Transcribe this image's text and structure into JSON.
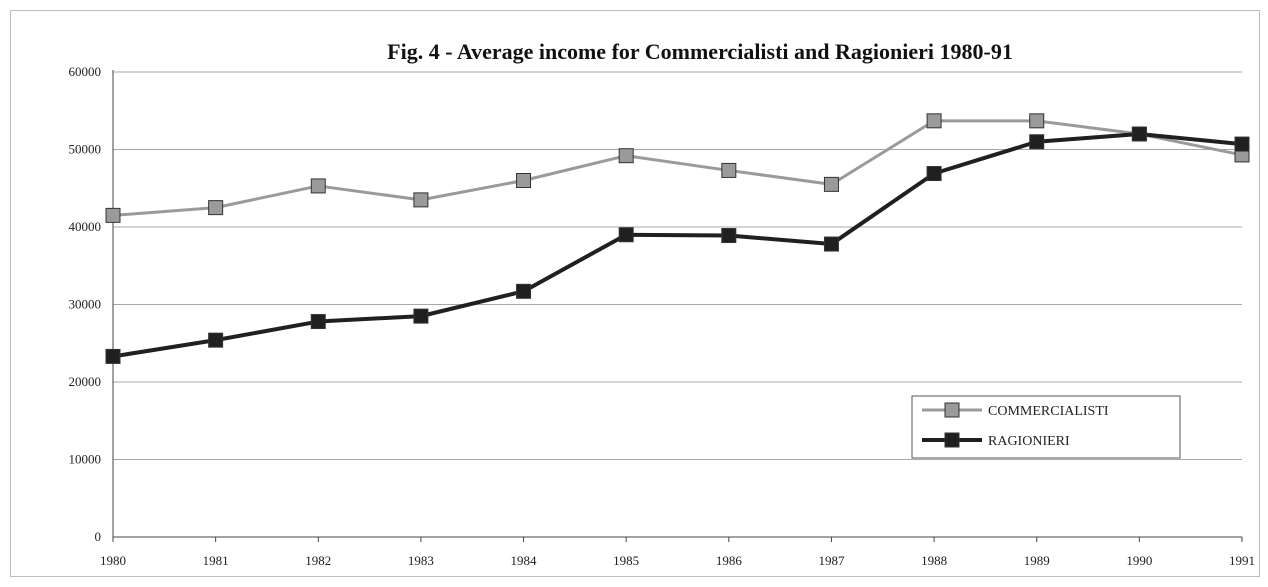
{
  "chart_data": {
    "type": "line",
    "title": "Fig.  4 - Average income for Commercialisti and Ragionieri 1980-91",
    "xlabel": "",
    "ylabel": "",
    "categories": [
      "1980",
      "1981",
      "1982",
      "1983",
      "1984",
      "1985",
      "1986",
      "1987",
      "1988",
      "1989",
      "1990",
      "1991"
    ],
    "ylim": [
      0,
      60000
    ],
    "yticks": [
      "0",
      "10000",
      "20000",
      "30000",
      "40000",
      "50000",
      "60000"
    ],
    "grid": "horizontal",
    "legend_position": "lower-right",
    "series": [
      {
        "name": "COMMERCIALISTI",
        "color": "#9a9a9a",
        "values": [
          41500,
          42500,
          45300,
          43500,
          46000,
          49200,
          47300,
          45500,
          53700,
          53700,
          52000,
          49300
        ]
      },
      {
        "name": "RAGIONIERI",
        "color": "#202020",
        "values": [
          23300,
          25400,
          27800,
          28500,
          31700,
          39000,
          38900,
          37800,
          46900,
          51000,
          52000,
          50700
        ]
      }
    ]
  }
}
